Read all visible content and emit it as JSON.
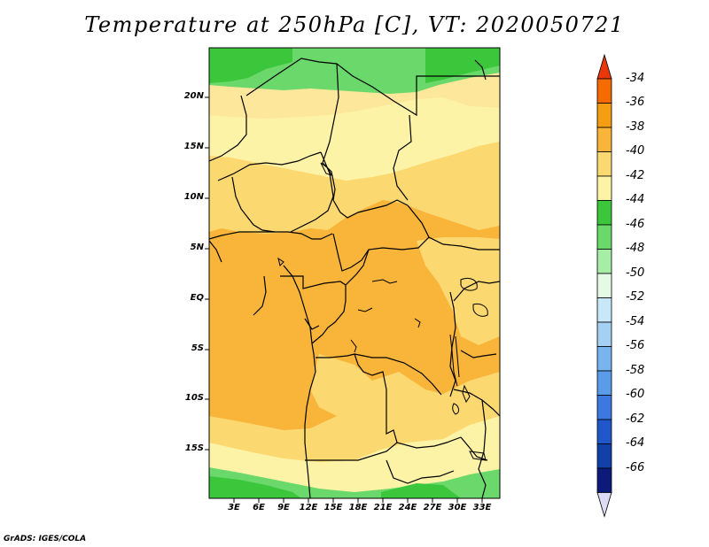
{
  "title": "Temperature at 250hPa [C], VT: 2020050721",
  "footer": "GrADS: IGES/COLA",
  "lat_ticks": [
    "20N",
    "15N",
    "10N",
    "5N",
    "EQ",
    "5S",
    "10S",
    "15S"
  ],
  "lon_ticks": [
    "3E",
    "6E",
    "9E",
    "12E",
    "15E",
    "18E",
    "21E",
    "24E",
    "27E",
    "30E",
    "33E"
  ],
  "colorbar": {
    "labels": [
      "-34",
      "-36",
      "-38",
      "-40",
      "-42",
      "-44",
      "-46",
      "-48",
      "-50",
      "-52",
      "-54",
      "-56",
      "-58",
      "-60",
      "-62",
      "-64",
      "-66"
    ],
    "colors": [
      "#e8370a",
      "#f56b00",
      "#f59e13",
      "#f8b53a",
      "#fbd870",
      "#fdf3a6",
      "#3cc63c",
      "#6ad86a",
      "#a6eda6",
      "#e4fae4",
      "#c8e8f8",
      "#a4d0f4",
      "#78b4ee",
      "#5a9cea",
      "#3c78e0",
      "#2058cc",
      "#1040a8",
      "#0c1a7a",
      "#dcdcf5"
    ]
  }
}
